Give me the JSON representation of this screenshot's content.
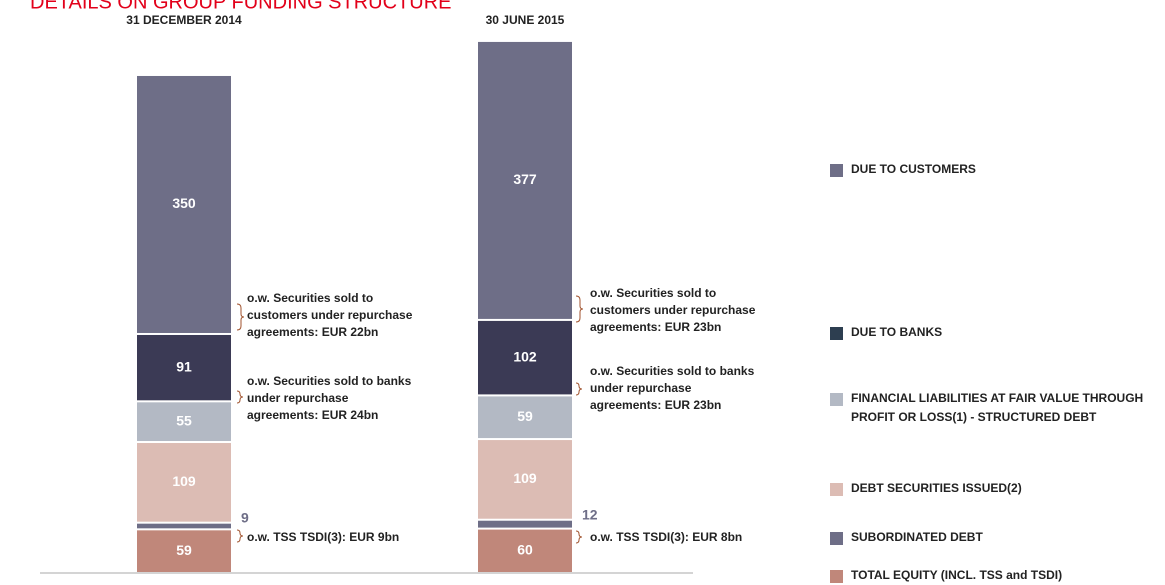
{
  "chart_data": {
    "type": "stacked_bar",
    "title": "DETAILS ON GROUP FUNDING STRUCTURE",
    "categories": [
      "31 DECEMBER 2014",
      "30 JUNE 2015"
    ],
    "series": [
      {
        "name": "TOTAL EQUITY (INCL. TSS and TSDI)",
        "color": "#c0877a",
        "values": [
          59,
          60
        ]
      },
      {
        "name": "SUBORDINATED DEBT",
        "color": "#6e6e87",
        "values": [
          9,
          12
        ]
      },
      {
        "name": "DEBT SECURITIES ISSUED(2)",
        "color": "#dcbcb4",
        "values": [
          109,
          109
        ]
      },
      {
        "name": "FINANCIAL LIABILITIES AT FAIR VALUE THROUGH PROFIT OR LOSS(1) - STRUCTURED DEBT",
        "color": "#b3b9c4",
        "values": [
          55,
          59
        ]
      },
      {
        "name": "DUE TO BANKS",
        "color": "#3b3a55",
        "values": [
          91,
          102
        ]
      },
      {
        "name": "DUE TO CUSTOMERS",
        "color": "#6e6e87",
        "values": [
          350,
          377
        ]
      }
    ],
    "annotations": [
      [
        "o.w. Securities sold to",
        "customers under repurchase",
        "agreements: EUR 22bn"
      ],
      [
        "o.w. Securities sold to banks",
        "under repurchase",
        "agreements: EUR 24bn"
      ],
      [
        "o.w. TSS TSDI(3): EUR 9bn"
      ],
      [
        "o.w. Securities sold to",
        "customers under repurchase",
        "agreements: EUR 23bn"
      ],
      [
        "o.w. Securities sold to banks",
        "under repurchase",
        "agreements: EUR 23bn"
      ],
      [
        "o.w. TSS TSDI(3): EUR 8bn"
      ]
    ]
  }
}
